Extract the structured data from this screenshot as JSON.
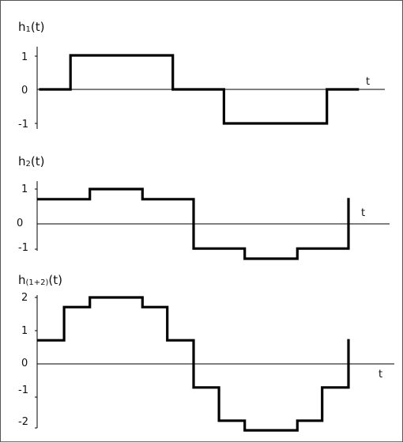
{
  "plots": [
    {
      "title_main": "h",
      "title_sub": "1",
      "title_arg": "(t)",
      "t_label": "t",
      "y_ticks": [
        "1",
        "0",
        "-1"
      ],
      "y_values": [
        1,
        0,
        -1
      ],
      "waveform": [
        [
          0,
          0
        ],
        [
          0.098,
          0
        ],
        [
          0.098,
          1
        ],
        [
          0.43,
          1
        ],
        [
          0.43,
          0
        ],
        [
          0.596,
          0
        ],
        [
          0.596,
          -1
        ],
        [
          0.93,
          -1
        ],
        [
          0.93,
          0
        ],
        [
          1.03,
          0
        ]
      ]
    },
    {
      "title_main": "h",
      "title_sub": "2",
      "title_arg": "(t)",
      "t_label": "t",
      "y_ticks": [
        "1",
        "0",
        "-1"
      ],
      "y_values": [
        1,
        0,
        -1
      ],
      "waveform": [
        [
          0,
          0.71
        ],
        [
          0.165,
          0.71
        ],
        [
          0.165,
          1
        ],
        [
          0.335,
          1
        ],
        [
          0.335,
          0.71
        ],
        [
          0.5,
          0.71
        ],
        [
          0.5,
          -0.71
        ],
        [
          0.665,
          -0.71
        ],
        [
          0.665,
          -1
        ],
        [
          0.835,
          -1
        ],
        [
          0.835,
          -0.71
        ],
        [
          1.0,
          -0.71
        ],
        [
          1.0,
          0.71
        ]
      ]
    },
    {
      "title_main": "h",
      "title_sub": "(1+2)",
      "title_arg": "(t)",
      "t_label": "t",
      "y_ticks": [
        "2",
        "1",
        "0",
        "-1",
        "-2"
      ],
      "y_values": [
        2,
        1,
        0,
        -1,
        -2
      ],
      "waveform": [
        [
          0,
          0.71
        ],
        [
          0.082,
          0.71
        ],
        [
          0.082,
          1.71
        ],
        [
          0.165,
          1.71
        ],
        [
          0.165,
          2
        ],
        [
          0.335,
          2
        ],
        [
          0.335,
          1.71
        ],
        [
          0.415,
          1.71
        ],
        [
          0.415,
          0.71
        ],
        [
          0.5,
          0.71
        ],
        [
          0.5,
          -0.71
        ],
        [
          0.582,
          -0.71
        ],
        [
          0.582,
          -1.71
        ],
        [
          0.665,
          -1.71
        ],
        [
          0.665,
          -2
        ],
        [
          0.835,
          -2
        ],
        [
          0.835,
          -1.71
        ],
        [
          0.915,
          -1.71
        ],
        [
          0.915,
          -0.71
        ],
        [
          1.0,
          -0.71
        ],
        [
          1.0,
          0.71
        ]
      ]
    }
  ]
}
